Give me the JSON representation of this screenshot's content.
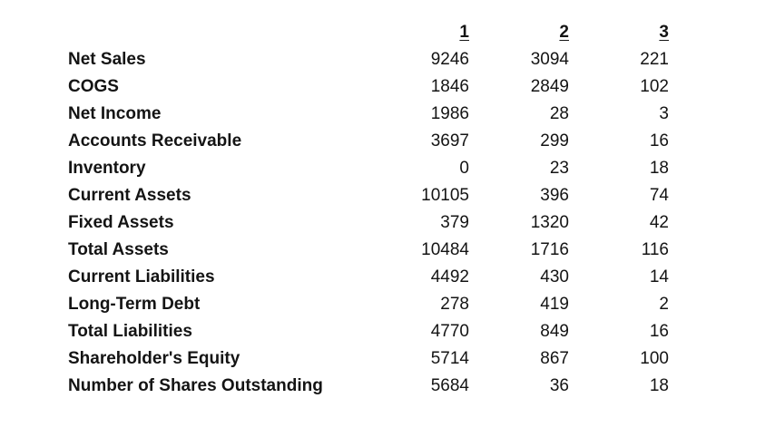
{
  "colors": {
    "background": "#ffffff",
    "text": "#141414"
  },
  "table": {
    "label_column_header": "",
    "columns": [
      "1",
      "2",
      "3"
    ],
    "rows": [
      {
        "label": "Net Sales",
        "values": [
          "9246",
          "3094",
          "221"
        ]
      },
      {
        "label": "COGS",
        "values": [
          "1846",
          "2849",
          "102"
        ]
      },
      {
        "label": "Net Income",
        "values": [
          "1986",
          "28",
          "3"
        ]
      },
      {
        "label": "Accounts Receivable",
        "values": [
          "3697",
          "299",
          "16"
        ]
      },
      {
        "label": "Inventory",
        "values": [
          "0",
          "23",
          "18"
        ]
      },
      {
        "label": "Current Assets",
        "values": [
          "10105",
          "396",
          "74"
        ]
      },
      {
        "label": "Fixed Assets",
        "values": [
          "379",
          "1320",
          "42"
        ]
      },
      {
        "label": "Total Assets",
        "values": [
          "10484",
          "1716",
          "116"
        ]
      },
      {
        "label": "Current Liabilities",
        "values": [
          "4492",
          "430",
          "14"
        ]
      },
      {
        "label": "Long-Term Debt",
        "values": [
          "278",
          "419",
          "2"
        ]
      },
      {
        "label": "Total Liabilities",
        "values": [
          "4770",
          "849",
          "16"
        ]
      },
      {
        "label": "Shareholder's Equity",
        "values": [
          "5714",
          "867",
          "100"
        ]
      },
      {
        "label": "Number of Shares Outstanding",
        "values": [
          "5684",
          "36",
          "18"
        ]
      }
    ]
  }
}
